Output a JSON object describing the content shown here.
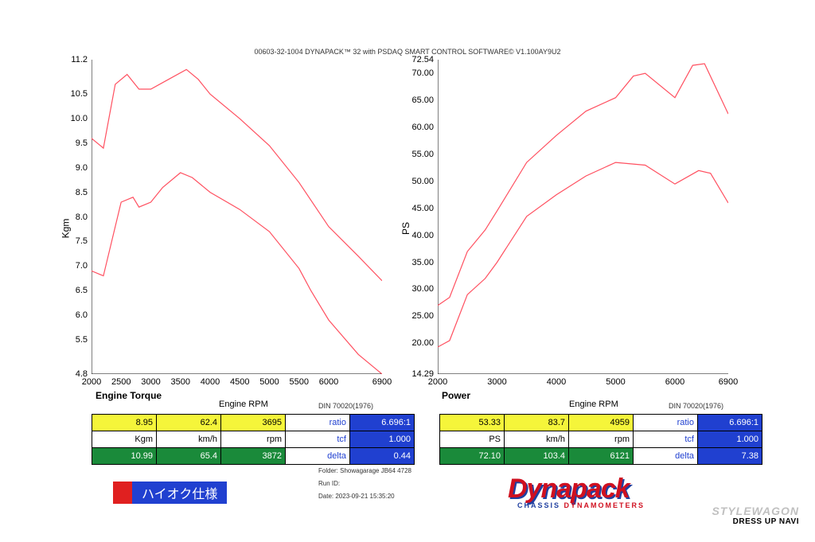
{
  "header": "00603-32-1004 DYNAPACK™ 32 with PSDAQ SMART CONTROL SOFTWARE© V1.100AY9U2",
  "torqueChart": {
    "title": "Engine Torque",
    "ylabel": "Kgm",
    "xlabel": "Engine RPM",
    "din": "DIN 70020(1976)",
    "ylim": [
      4.8,
      11.2
    ],
    "yticks": [
      4.8,
      5.5,
      6.0,
      6.5,
      7.0,
      7.5,
      8.0,
      8.5,
      9.0,
      9.5,
      10.0,
      10.5,
      11.2
    ],
    "xlim": [
      2000,
      6900
    ],
    "xticks": [
      2000,
      2500,
      3000,
      3500,
      4000,
      4500,
      5000,
      5500,
      6000,
      6900
    ],
    "line_color": "#ff5060",
    "line1": [
      [
        2000,
        6.9
      ],
      [
        2200,
        6.8
      ],
      [
        2500,
        8.3
      ],
      [
        2700,
        8.4
      ],
      [
        2800,
        8.2
      ],
      [
        3000,
        8.3
      ],
      [
        3200,
        8.6
      ],
      [
        3500,
        8.9
      ],
      [
        3700,
        8.8
      ],
      [
        4000,
        8.5
      ],
      [
        4500,
        8.15
      ],
      [
        5000,
        7.7
      ],
      [
        5500,
        6.95
      ],
      [
        5700,
        6.5
      ],
      [
        6000,
        5.9
      ],
      [
        6500,
        5.2
      ],
      [
        6900,
        4.8
      ]
    ],
    "line2": [
      [
        2000,
        9.6
      ],
      [
        2200,
        9.4
      ],
      [
        2400,
        10.7
      ],
      [
        2600,
        10.9
      ],
      [
        2800,
        10.6
      ],
      [
        3000,
        10.6
      ],
      [
        3300,
        10.8
      ],
      [
        3600,
        11.0
      ],
      [
        3800,
        10.8
      ],
      [
        4000,
        10.5
      ],
      [
        4500,
        10.0
      ],
      [
        5000,
        9.45
      ],
      [
        5500,
        8.7
      ],
      [
        6000,
        7.8
      ],
      [
        6500,
        7.2
      ],
      [
        6900,
        6.7
      ]
    ]
  },
  "powerChart": {
    "title": "Power",
    "ylabel": "PS",
    "xlabel": "Engine RPM",
    "din": "DIN 70020(1976)",
    "ylim": [
      14.29,
      72.54
    ],
    "yticks": [
      14.29,
      20.0,
      25.0,
      30.0,
      35.0,
      40.0,
      45.0,
      50.0,
      55.0,
      60.0,
      65.0,
      70.0,
      72.54
    ],
    "xlim": [
      2000,
      6900
    ],
    "xticks": [
      2000,
      3000,
      4000,
      5000,
      6000,
      6900
    ],
    "line_color": "#ff5060",
    "line1": [
      [
        2000,
        19.3
      ],
      [
        2200,
        20.5
      ],
      [
        2500,
        29
      ],
      [
        2800,
        32
      ],
      [
        3000,
        35
      ],
      [
        3500,
        43.5
      ],
      [
        4000,
        47.5
      ],
      [
        4500,
        51
      ],
      [
        5000,
        53.5
      ],
      [
        5500,
        53
      ],
      [
        6000,
        49.5
      ],
      [
        6400,
        52
      ],
      [
        6600,
        51.5
      ],
      [
        6900,
        46
      ]
    ],
    "line2": [
      [
        2000,
        27
      ],
      [
        2200,
        28.5
      ],
      [
        2500,
        37
      ],
      [
        2800,
        41
      ],
      [
        3000,
        44.5
      ],
      [
        3500,
        53.5
      ],
      [
        4000,
        58.5
      ],
      [
        4500,
        63
      ],
      [
        5000,
        65.5
      ],
      [
        5300,
        69.5
      ],
      [
        5500,
        70
      ],
      [
        6000,
        65.5
      ],
      [
        6300,
        71.5
      ],
      [
        6500,
        71.8
      ],
      [
        6900,
        62.5
      ]
    ]
  },
  "dataLeft": {
    "row1": [
      "8.95",
      "62.4",
      "3695"
    ],
    "units": [
      "Kgm",
      "km/h",
      "rpm"
    ],
    "row2": [
      "10.99",
      "65.4",
      "3872"
    ],
    "ratio_label": "ratio",
    "ratio": "6.696:1",
    "tcf_label": "tcf",
    "tcf": "1.000",
    "delta_label": "delta",
    "delta": "0.44"
  },
  "dataRight": {
    "row1": [
      "53.33",
      "83.7",
      "4959"
    ],
    "units": [
      "PS",
      "km/h",
      "rpm"
    ],
    "row2": [
      "72.10",
      "103.4",
      "6121"
    ],
    "ratio_label": "ratio",
    "ratio": "6.696:1",
    "tcf_label": "tcf",
    "tcf": "1.000",
    "delta_label": "delta",
    "delta": "7.38"
  },
  "folder": {
    "l1": "Folder:   Showagarage JB64 4728",
    "l2": "Run ID:",
    "l3": "Date:   2023-09-21 15:35:20"
  },
  "badge": "ハイオク仕様",
  "logo": {
    "main": "Dynapack",
    "sub1": "CHASSIS ",
    "sub2": "DYNAMOMETERS"
  },
  "watermark": {
    "l1": "STYLEWAGON",
    "l2": "DRESS UP NAVI"
  },
  "colors": {
    "yellow": "#f5f53a",
    "green": "#1a8a3a",
    "blue": "#2040d0",
    "red": "#e02020",
    "line": "#ff5060"
  }
}
